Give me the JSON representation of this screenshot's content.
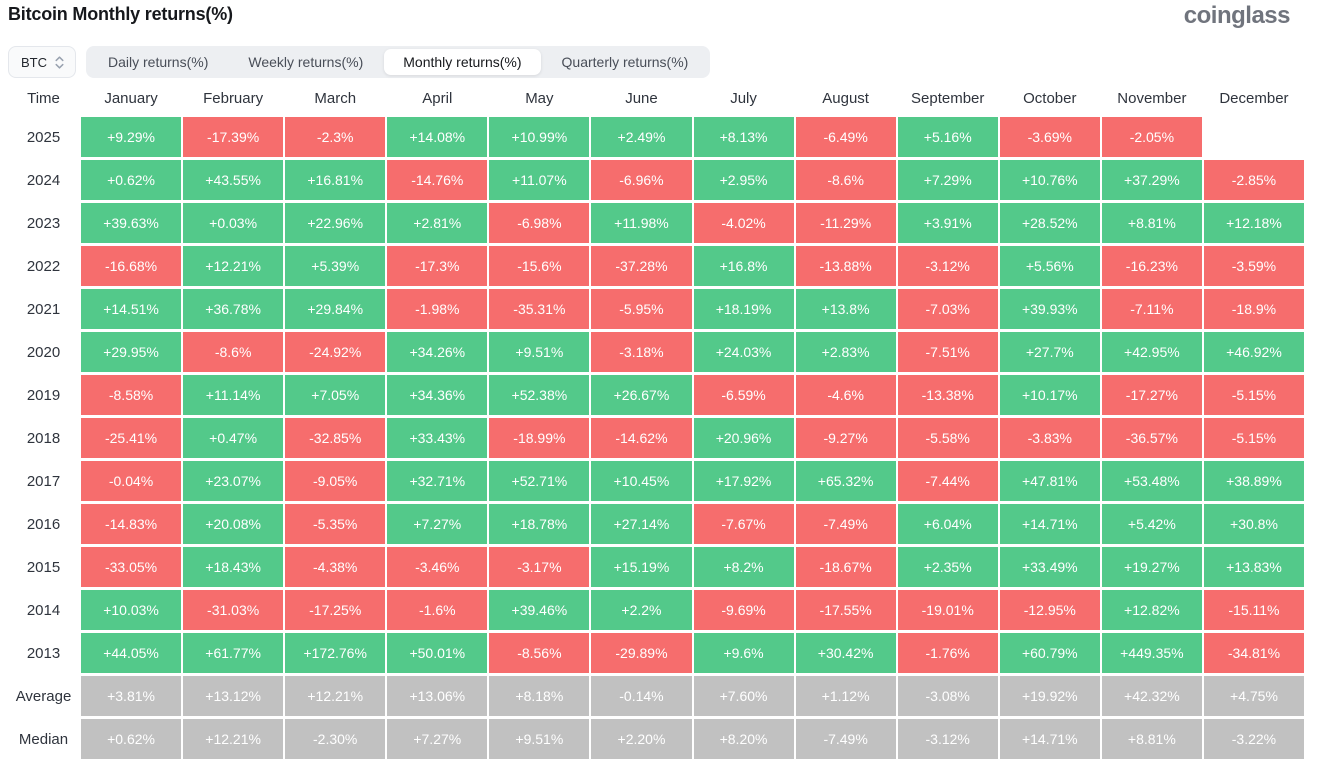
{
  "page": {
    "title": "Bitcoin Monthly returns(%)",
    "logo": "coinglass"
  },
  "selector": {
    "value": "BTC"
  },
  "tabs": [
    {
      "label": "Daily returns(%)",
      "active": false
    },
    {
      "label": "Weekly returns(%)",
      "active": false
    },
    {
      "label": "Monthly returns(%)",
      "active": true
    },
    {
      "label": "Quarterly returns(%)",
      "active": false
    }
  ],
  "colors": {
    "positive": "#53c98a",
    "negative": "#f66d6d",
    "neutral": "#c1c1c1"
  },
  "table": {
    "columns": [
      "Time",
      "January",
      "February",
      "March",
      "April",
      "May",
      "June",
      "July",
      "August",
      "September",
      "October",
      "November",
      "December"
    ],
    "rows": [
      {
        "label": "2025",
        "type": "year",
        "values": [
          "+9.29%",
          "-17.39%",
          "-2.3%",
          "+14.08%",
          "+10.99%",
          "+2.49%",
          "+8.13%",
          "-6.49%",
          "+5.16%",
          "-3.69%",
          "-2.05%",
          null
        ]
      },
      {
        "label": "2024",
        "type": "year",
        "values": [
          "+0.62%",
          "+43.55%",
          "+16.81%",
          "-14.76%",
          "+11.07%",
          "-6.96%",
          "+2.95%",
          "-8.6%",
          "+7.29%",
          "+10.76%",
          "+37.29%",
          "-2.85%"
        ]
      },
      {
        "label": "2023",
        "type": "year",
        "values": [
          "+39.63%",
          "+0.03%",
          "+22.96%",
          "+2.81%",
          "-6.98%",
          "+11.98%",
          "-4.02%",
          "-11.29%",
          "+3.91%",
          "+28.52%",
          "+8.81%",
          "+12.18%"
        ]
      },
      {
        "label": "2022",
        "type": "year",
        "values": [
          "-16.68%",
          "+12.21%",
          "+5.39%",
          "-17.3%",
          "-15.6%",
          "-37.28%",
          "+16.8%",
          "-13.88%",
          "-3.12%",
          "+5.56%",
          "-16.23%",
          "-3.59%"
        ]
      },
      {
        "label": "2021",
        "type": "year",
        "values": [
          "+14.51%",
          "+36.78%",
          "+29.84%",
          "-1.98%",
          "-35.31%",
          "-5.95%",
          "+18.19%",
          "+13.8%",
          "-7.03%",
          "+39.93%",
          "-7.11%",
          "-18.9%"
        ]
      },
      {
        "label": "2020",
        "type": "year",
        "values": [
          "+29.95%",
          "-8.6%",
          "-24.92%",
          "+34.26%",
          "+9.51%",
          "-3.18%",
          "+24.03%",
          "+2.83%",
          "-7.51%",
          "+27.7%",
          "+42.95%",
          "+46.92%"
        ]
      },
      {
        "label": "2019",
        "type": "year",
        "values": [
          "-8.58%",
          "+11.14%",
          "+7.05%",
          "+34.36%",
          "+52.38%",
          "+26.67%",
          "-6.59%",
          "-4.6%",
          "-13.38%",
          "+10.17%",
          "-17.27%",
          "-5.15%"
        ]
      },
      {
        "label": "2018",
        "type": "year",
        "values": [
          "-25.41%",
          "+0.47%",
          "-32.85%",
          "+33.43%",
          "-18.99%",
          "-14.62%",
          "+20.96%",
          "-9.27%",
          "-5.58%",
          "-3.83%",
          "-36.57%",
          "-5.15%"
        ]
      },
      {
        "label": "2017",
        "type": "year",
        "values": [
          "-0.04%",
          "+23.07%",
          "-9.05%",
          "+32.71%",
          "+52.71%",
          "+10.45%",
          "+17.92%",
          "+65.32%",
          "-7.44%",
          "+47.81%",
          "+53.48%",
          "+38.89%"
        ]
      },
      {
        "label": "2016",
        "type": "year",
        "values": [
          "-14.83%",
          "+20.08%",
          "-5.35%",
          "+7.27%",
          "+18.78%",
          "+27.14%",
          "-7.67%",
          "-7.49%",
          "+6.04%",
          "+14.71%",
          "+5.42%",
          "+30.8%"
        ]
      },
      {
        "label": "2015",
        "type": "year",
        "values": [
          "-33.05%",
          "+18.43%",
          "-4.38%",
          "-3.46%",
          "-3.17%",
          "+15.19%",
          "+8.2%",
          "-18.67%",
          "+2.35%",
          "+33.49%",
          "+19.27%",
          "+13.83%"
        ]
      },
      {
        "label": "2014",
        "type": "year",
        "values": [
          "+10.03%",
          "-31.03%",
          "-17.25%",
          "-1.6%",
          "+39.46%",
          "+2.2%",
          "-9.69%",
          "-17.55%",
          "-19.01%",
          "-12.95%",
          "+12.82%",
          "-15.11%"
        ]
      },
      {
        "label": "2013",
        "type": "year",
        "values": [
          "+44.05%",
          "+61.77%",
          "+172.76%",
          "+50.01%",
          "-8.56%",
          "-29.89%",
          "+9.6%",
          "+30.42%",
          "-1.76%",
          "+60.79%",
          "+449.35%",
          "-34.81%"
        ]
      },
      {
        "label": "Average",
        "type": "summary",
        "values": [
          "+3.81%",
          "+13.12%",
          "+12.21%",
          "+13.06%",
          "+8.18%",
          "-0.14%",
          "+7.60%",
          "+1.12%",
          "-3.08%",
          "+19.92%",
          "+42.32%",
          "+4.75%"
        ]
      },
      {
        "label": "Median",
        "type": "summary",
        "values": [
          "+0.62%",
          "+12.21%",
          "-2.30%",
          "+7.27%",
          "+9.51%",
          "+2.20%",
          "+8.20%",
          "-7.49%",
          "-3.12%",
          "+14.71%",
          "+8.81%",
          "-3.22%"
        ]
      }
    ]
  }
}
